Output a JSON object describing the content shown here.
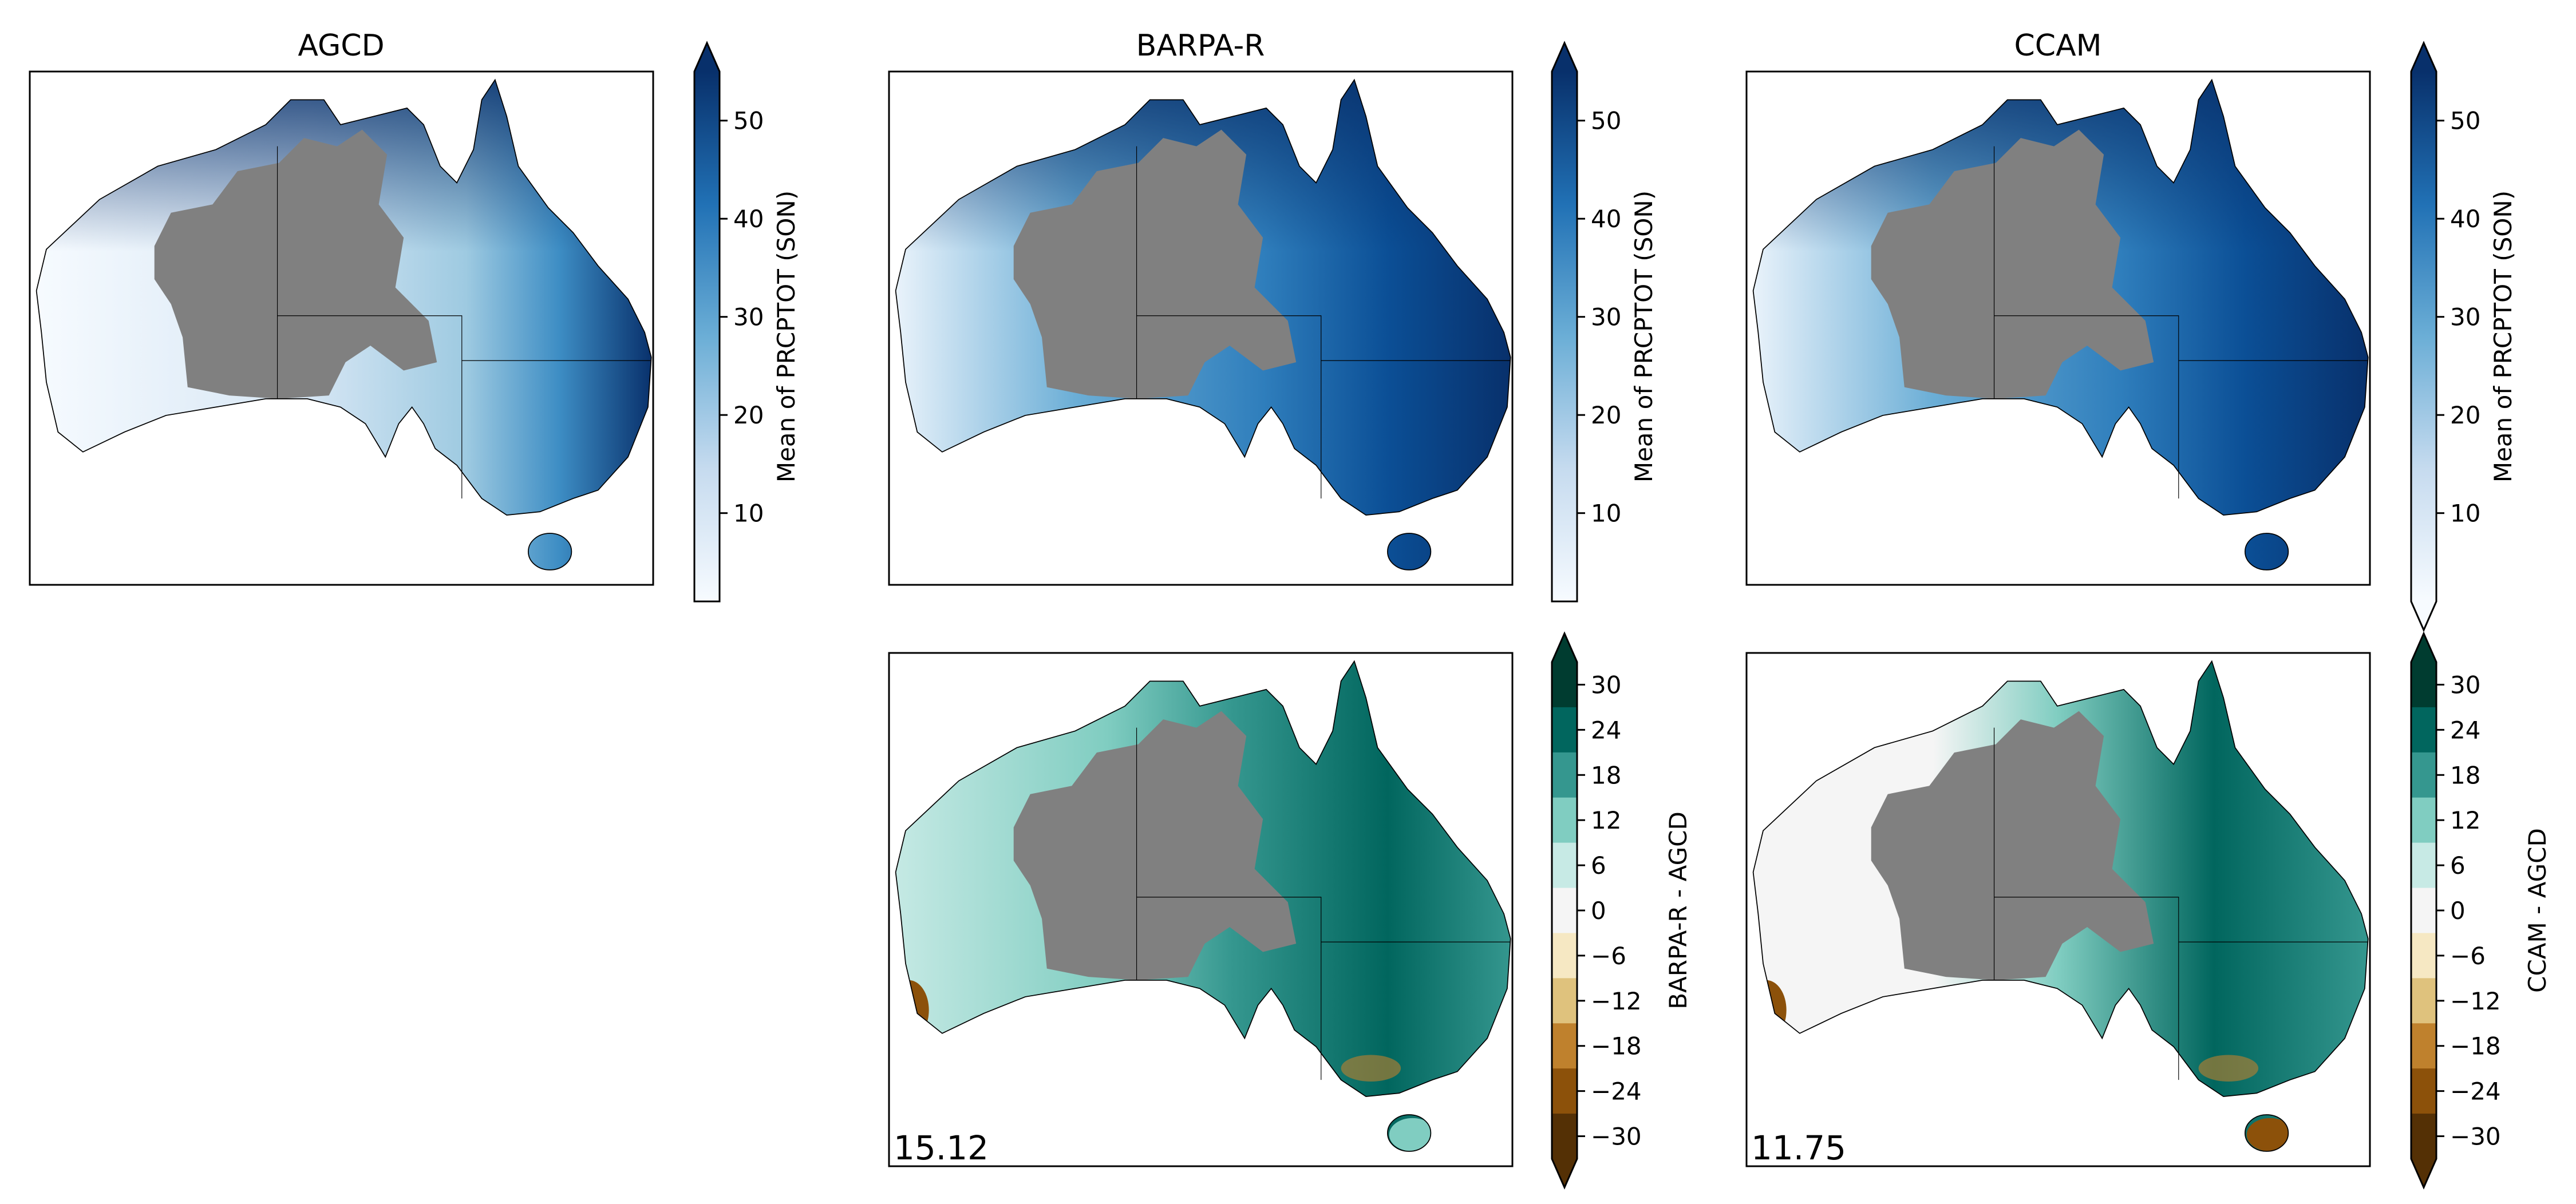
{
  "chart_data": [
    {
      "type": "heatmap",
      "title": "AGCD",
      "map_region": "Australia",
      "colorbar": {
        "label": "Mean of PRCPTOT (SON)",
        "ticks": [
          10,
          20,
          30,
          40,
          50
        ],
        "range": [
          1,
          55
        ],
        "extend": "max",
        "colormap": "Blues"
      }
    },
    {
      "type": "heatmap",
      "title": "BARPA-R",
      "map_region": "Australia",
      "colorbar": {
        "label": "Mean of PRCPTOT (SON)",
        "ticks": [
          10,
          20,
          30,
          40,
          50
        ],
        "range": [
          1,
          55
        ],
        "extend": "max",
        "colormap": "Blues"
      }
    },
    {
      "type": "heatmap",
      "title": "CCAM",
      "map_region": "Australia",
      "colorbar": {
        "label": "Mean of PRCPTOT (SON)",
        "ticks": [
          10,
          20,
          30,
          40,
          50
        ],
        "range": [
          1,
          55
        ],
        "extend": "both",
        "colormap": "Blues"
      }
    },
    {
      "type": "heatmap",
      "title": "",
      "map_region": "Australia",
      "annotation": "15.12",
      "colorbar": {
        "label": "BARPA-R - AGCD",
        "ticks": [
          30,
          24,
          18,
          12,
          6,
          0,
          -6,
          -12,
          -18,
          -24,
          -30
        ],
        "tick_labels": [
          "30",
          "24",
          "18",
          "12",
          "6",
          "0",
          "−6",
          "−12",
          "−18",
          "−24",
          "−30"
        ],
        "range": [
          -33,
          33
        ],
        "extend": "both",
        "colormap": "BrBG",
        "levels": 11
      }
    },
    {
      "type": "heatmap",
      "title": "",
      "map_region": "Australia",
      "annotation": "11.75",
      "colorbar": {
        "label": "CCAM - AGCD",
        "ticks": [
          30,
          24,
          18,
          12,
          6,
          0,
          -6,
          -12,
          -18,
          -24,
          -30
        ],
        "tick_labels": [
          "30",
          "24",
          "18",
          "12",
          "6",
          "0",
          "−6",
          "−12",
          "−18",
          "−24",
          "−30"
        ],
        "range": [
          -33,
          33
        ],
        "extend": "both",
        "colormap": "BrBG",
        "levels": 11
      }
    }
  ],
  "colors": {
    "mask": "#808080",
    "blues": [
      "#f7fbff",
      "#c6dbef",
      "#6baed6",
      "#2171b5",
      "#08306b"
    ],
    "brbg": [
      "#003c30",
      "#01665e",
      "#35978f",
      "#80cdc1",
      "#c7eae5",
      "#f5f5f5",
      "#f6e8c3",
      "#dfc27d",
      "#bf812d",
      "#8c510a",
      "#543005"
    ]
  }
}
